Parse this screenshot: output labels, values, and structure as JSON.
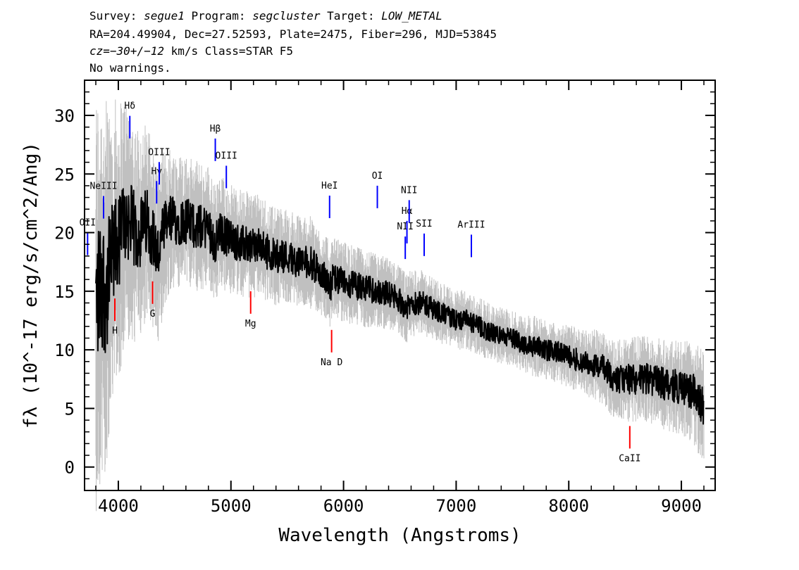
{
  "header": {
    "line1_survey_label": "Survey: ",
    "survey": "segue1",
    "line1_program_label": " Program: ",
    "program": "segcluster",
    "line1_target_label": " Target: ",
    "target": "LOW_METAL",
    "line2": "RA=204.49904, Dec=27.52593, Plate=2475, Fiber=296, MJD=53845",
    "line3_cz": "cz=",
    "line3_cz_value": "−30+/−12",
    "line3_rest": " km/s Class=STAR F5",
    "line4": "No warnings."
  },
  "chart_data": {
    "type": "line",
    "title": "",
    "xlabel": "Wavelength (Angstroms)",
    "ylabel": "fλ (10^-17 erg/s/cm^2/Ang)",
    "xlim": [
      3700,
      9300
    ],
    "ylim": [
      -2,
      33
    ],
    "x_ticks": [
      4000,
      5000,
      6000,
      7000,
      8000,
      9000
    ],
    "y_ticks": [
      0,
      5,
      10,
      15,
      20,
      25,
      30
    ],
    "series": [
      {
        "style": "flux",
        "color": "#000000",
        "x": [
          3800,
          3850,
          3900,
          3950,
          4000,
          4050,
          4100,
          4150,
          4200,
          4250,
          4300,
          4350,
          4400,
          4450,
          4500,
          4600,
          4700,
          4800,
          4860,
          4900,
          5000,
          5100,
          5200,
          5300,
          5400,
          5500,
          5600,
          5700,
          5800,
          5890,
          5900,
          6000,
          6100,
          6200,
          6300,
          6400,
          6500,
          6563,
          6600,
          6700,
          6800,
          6900,
          7000,
          7100,
          7200,
          7300,
          7400,
          7500,
          7600,
          7700,
          7800,
          7900,
          8000,
          8100,
          8200,
          8300,
          8400,
          8500,
          8600,
          8700,
          8800,
          8900,
          9000,
          9100,
          9200
        ],
        "y": [
          14,
          16,
          15,
          18,
          19,
          21,
          21,
          20,
          20,
          21,
          20,
          18,
          20,
          21,
          21,
          21,
          20.5,
          20.5,
          19,
          20,
          19.5,
          19,
          19,
          18.5,
          18,
          18,
          17.5,
          17.5,
          16.5,
          15.5,
          16,
          15.8,
          15.5,
          15.2,
          15,
          14.8,
          14.2,
          13.5,
          14,
          14,
          13.5,
          13,
          12.5,
          12.5,
          12,
          11.5,
          11.2,
          11,
          10.5,
          10.3,
          10,
          9.8,
          9.5,
          9,
          8.8,
          8.5,
          7.5,
          7.5,
          7.5,
          7.5,
          7.2,
          7,
          6.8,
          6.5,
          5
        ]
      },
      {
        "style": "error",
        "color": "#c0c0c0",
        "x": [
          3800,
          3900,
          4000,
          4100,
          4200,
          4300,
          4400,
          4500,
          4700,
          4900,
          5100,
          5300,
          5500,
          5700,
          5900,
          6100,
          6300,
          6500,
          6700,
          6900,
          7100,
          7300,
          7500,
          7700,
          7900,
          8100,
          8300,
          8500,
          8700,
          8900,
          9100,
          9200
        ],
        "y": [
          9,
          8,
          6,
          5,
          4.5,
          4,
          3.5,
          3,
          2.8,
          2.5,
          2.3,
          2.2,
          2,
          2,
          1.8,
          1.7,
          1.6,
          1.5,
          1.4,
          1.3,
          1.3,
          1.2,
          1.2,
          1.3,
          1.3,
          1.4,
          1.6,
          1.8,
          1.9,
          2,
          2.2,
          2.4
        ]
      }
    ],
    "emission_lines": [
      {
        "name": "OII",
        "x": 3727
      },
      {
        "name": "NeIII",
        "x": 3869
      },
      {
        "name": "Hδ",
        "x": 4102
      },
      {
        "name": "Hγ",
        "x": 4340
      },
      {
        "name": "OIII",
        "x": 4363
      },
      {
        "name": "Hβ",
        "x": 4861
      },
      {
        "name": "OIII",
        "x": 4959
      },
      {
        "name": "HeI",
        "x": 5876
      },
      {
        "name": "OI",
        "x": 6300
      },
      {
        "name": "NII",
        "x": 6548
      },
      {
        "name": "Hα",
        "x": 6563
      },
      {
        "name": "NII",
        "x": 6583
      },
      {
        "name": "SII",
        "x": 6716
      },
      {
        "name": "ArIII",
        "x": 7135
      }
    ],
    "absorption_lines": [
      {
        "name": "H",
        "x": 3969
      },
      {
        "name": "G",
        "x": 4304
      },
      {
        "name": "Mg",
        "x": 5175
      },
      {
        "name": "Na D",
        "x": 5894
      },
      {
        "name": "CaII",
        "x": 8542
      }
    ]
  }
}
